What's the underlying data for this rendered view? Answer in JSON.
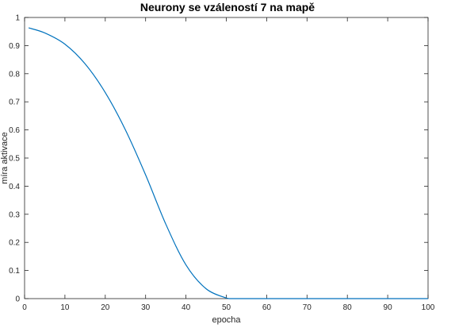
{
  "chart_data": {
    "type": "line",
    "title": "Neurony se vzáleností 7 na mapě",
    "xlabel": "epocha",
    "ylabel": "míra aktivace",
    "xlim": [
      0,
      100
    ],
    "ylim": [
      0,
      1
    ],
    "xticks": [
      0,
      10,
      20,
      30,
      40,
      50,
      60,
      70,
      80,
      90,
      100
    ],
    "yticks": [
      0,
      0.1,
      0.2,
      0.3,
      0.4,
      0.5,
      0.6,
      0.7,
      0.8,
      0.9,
      1
    ],
    "grid": false,
    "line_color": "#0072BD",
    "series": [
      {
        "x": [
          1,
          5,
          10,
          15,
          20,
          25,
          30,
          35,
          40,
          45,
          50,
          51,
          55,
          60,
          65,
          70,
          75,
          80,
          85,
          90,
          95,
          100
        ],
        "y": [
          0.963,
          0.945,
          0.905,
          0.835,
          0.733,
          0.6,
          0.44,
          0.265,
          0.12,
          0.035,
          0.002,
          0.0,
          0.0,
          0.0,
          0.0,
          0.0,
          0.0,
          0.0,
          0.0,
          0.0,
          0.0,
          0.0
        ]
      }
    ]
  }
}
